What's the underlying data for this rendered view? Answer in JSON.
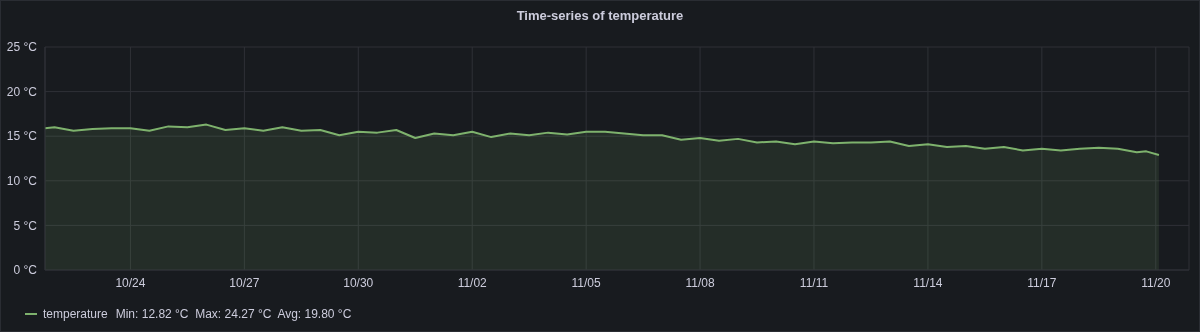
{
  "chart_data": {
    "type": "area",
    "title": "Time-series of temperature",
    "x": [
      "--10-21T18:00",
      "--10-22T00:00",
      "--10-22T12:00",
      "--10-23T00:00",
      "--10-23T12:00",
      "--10-24T00:00",
      "--10-24T12:00",
      "--10-25T00:00",
      "--10-25T12:00",
      "--10-26T00:00",
      "--10-26T12:00",
      "--10-27T00:00",
      "--10-27T12:00",
      "--10-28T00:00",
      "--10-28T12:00",
      "--10-29T00:00",
      "--10-29T12:00",
      "--10-30T00:00",
      "--10-30T12:00",
      "--10-31T00:00",
      "--10-31T12:00",
      "--11-01T00:00",
      "--11-01T12:00",
      "--11-02T00:00",
      "--11-02T12:00",
      "--11-03T00:00",
      "--11-03T12:00",
      "--11-04T00:00",
      "--11-04T12:00",
      "--11-05T00:00",
      "--11-05T12:00",
      "--11-06T00:00",
      "--11-06T12:00",
      "--11-07T00:00",
      "--11-07T12:00",
      "--11-08T00:00",
      "--11-08T12:00",
      "--11-09T00:00",
      "--11-09T12:00",
      "--11-10T00:00",
      "--11-10T12:00",
      "--11-11T00:00",
      "--11-11T12:00",
      "--11-12T00:00",
      "--11-12T12:00",
      "--11-13T00:00",
      "--11-13T12:00",
      "--11-14T00:00",
      "--11-14T12:00",
      "--11-15T00:00",
      "--11-15T12:00",
      "--11-16T00:00",
      "--11-16T12:00",
      "--11-17T00:00",
      "--11-17T12:00",
      "--11-18T00:00",
      "--11-18T12:00",
      "--11-19T00:00",
      "--11-19T12:00",
      "--11-19T18:00",
      "--11-20T02:00"
    ],
    "series": [
      {
        "name": "temperature",
        "color": "#7eb26d",
        "values": [
          15.9,
          16.0,
          15.6,
          15.8,
          15.9,
          15.9,
          15.6,
          16.1,
          16.0,
          16.3,
          15.7,
          15.9,
          15.6,
          16.0,
          15.6,
          15.7,
          15.1,
          15.5,
          15.4,
          15.7,
          14.8,
          15.3,
          15.1,
          15.5,
          14.9,
          15.3,
          15.1,
          15.4,
          15.2,
          15.5,
          15.5,
          15.3,
          15.1,
          15.1,
          14.6,
          14.8,
          14.5,
          14.7,
          14.3,
          14.4,
          14.1,
          14.4,
          14.2,
          14.3,
          14.3,
          14.4,
          13.9,
          14.1,
          13.8,
          13.9,
          13.6,
          13.8,
          13.4,
          13.6,
          13.4,
          13.6,
          13.7,
          13.6,
          13.2,
          13.3,
          12.9
        ]
      }
    ],
    "xlim": [
      "--10-21T18:00",
      "--11-20T21:00"
    ],
    "xticks": [
      {
        "value": "--10-24",
        "label": "10/24"
      },
      {
        "value": "--10-27",
        "label": "10/27"
      },
      {
        "value": "--10-30",
        "label": "10/30"
      },
      {
        "value": "--11-02",
        "label": "11/02"
      },
      {
        "value": "--11-05",
        "label": "11/05"
      },
      {
        "value": "--11-08",
        "label": "11/08"
      },
      {
        "value": "--11-11",
        "label": "11/11"
      },
      {
        "value": "--11-14",
        "label": "11/14"
      },
      {
        "value": "--11-17",
        "label": "11/17"
      },
      {
        "value": "--11-20",
        "label": "11/20"
      }
    ],
    "ylim": [
      0,
      25
    ],
    "yticks": [
      {
        "value": 0,
        "label": "0 °C"
      },
      {
        "value": 5,
        "label": "5 °C"
      },
      {
        "value": 10,
        "label": "10 °C"
      },
      {
        "value": 15,
        "label": "15 °C"
      },
      {
        "value": 20,
        "label": "20 °C"
      },
      {
        "value": 25,
        "label": "25 °C"
      }
    ],
    "annotations": [
      "Min: 12.82 °C  Max: 24.27 °C  Avg: 19.80 °C"
    ],
    "grid": true,
    "legend": "bottom left",
    "marker": "none",
    "line_style": "solid"
  }
}
